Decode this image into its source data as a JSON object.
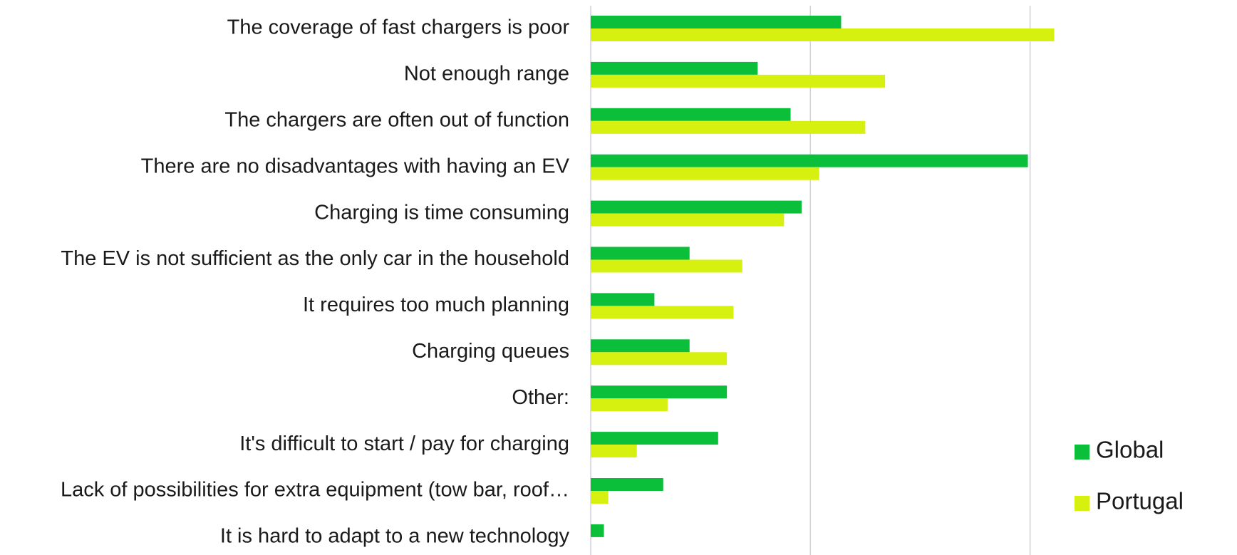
{
  "chart_data": {
    "type": "hbar",
    "categories": [
      "The coverage of fast chargers is poor",
      "Not enough range",
      "The chargers are often out of function",
      "There are no disadvantages with having an EV",
      "Charging is time consuming",
      "The EV is not sufficient as the only car in the household",
      "It requires too much planning",
      "Charging queues",
      "Other:",
      "It's difficult to start / pay for charging",
      "Lack of possibilities for extra equipment (tow bar, roof…",
      "It is hard to adapt to a new technology"
    ],
    "series": [
      {
        "name": "Global",
        "color": "#0cbf3b",
        "values": [
          11.4,
          7.6,
          9.1,
          19.9,
          9.6,
          4.5,
          2.9,
          4.5,
          6.2,
          5.8,
          3.3,
          0.6
        ]
      },
      {
        "name": "Portugal",
        "color": "#d6f00f",
        "values": [
          21.1,
          13.4,
          12.5,
          10.4,
          8.8,
          6.9,
          6.5,
          6.2,
          3.5,
          2.1,
          0.8,
          0
        ]
      }
    ],
    "xlim": [
      0,
      29
    ],
    "xticks": [
      0,
      10,
      20
    ],
    "grid": true,
    "legend": "lower right"
  }
}
